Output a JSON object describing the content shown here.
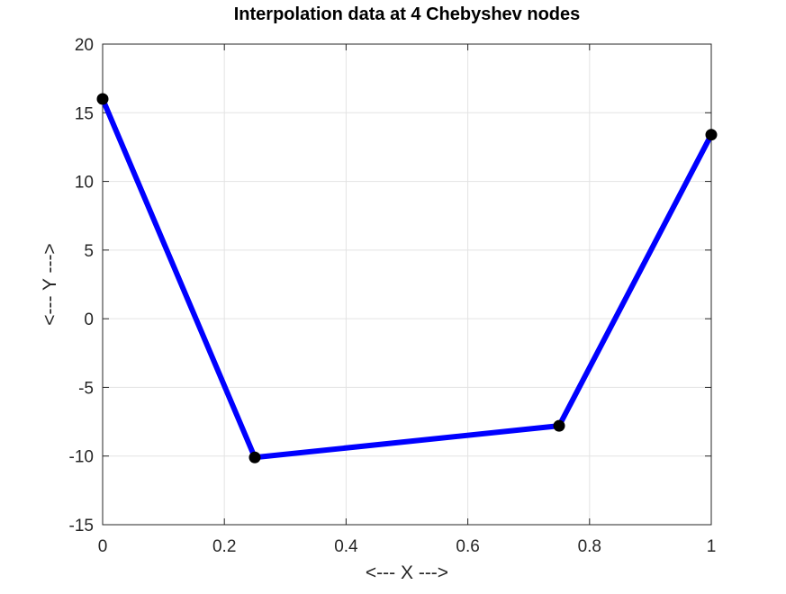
{
  "chart_data": {
    "type": "line",
    "title": "Interpolation data at 4 Chebyshev nodes",
    "xlabel": "<--- X --->",
    "ylabel": "<--- Y --->",
    "xlim": [
      0,
      1
    ],
    "ylim": [
      -15,
      20
    ],
    "x_ticks": [
      0,
      0.2,
      0.4,
      0.6,
      0.8,
      1
    ],
    "x_tick_labels": [
      "0",
      "0.2",
      "0.4",
      "0.6",
      "0.8",
      "1"
    ],
    "y_ticks": [
      -15,
      -10,
      -5,
      0,
      5,
      10,
      15,
      20
    ],
    "y_tick_labels": [
      "-15",
      "-10",
      "-5",
      "0",
      "5",
      "10",
      "15",
      "20"
    ],
    "grid": true,
    "series": [
      {
        "x": [
          0,
          0.25,
          0.75,
          1
        ],
        "y": [
          16,
          -10.1,
          -7.8,
          13.4
        ],
        "line_color": "#0000ff",
        "marker_color": "#000000",
        "marker": "circle"
      }
    ]
  }
}
